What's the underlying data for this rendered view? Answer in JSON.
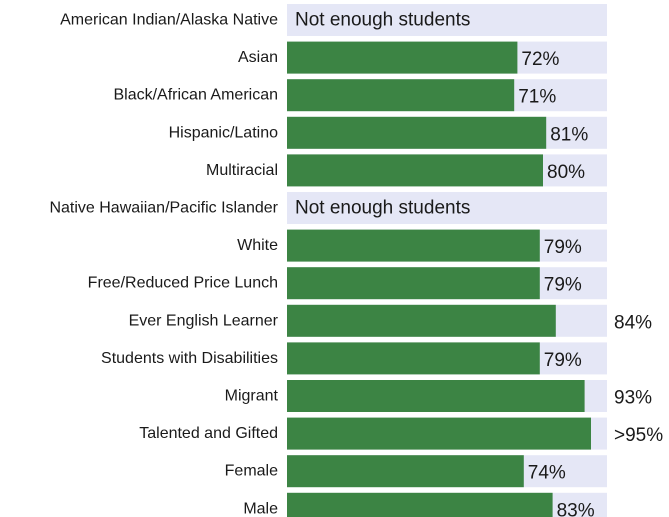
{
  "chart_data": {
    "type": "bar",
    "orientation": "horizontal",
    "xlim": [
      0,
      100
    ],
    "colors": {
      "bar": "#3c8444",
      "track": "#e5e7f6"
    },
    "categories": [
      "American Indian/Alaska Native",
      "Asian",
      "Black/African American",
      "Hispanic/Latino",
      "Multiracial",
      "Native Hawaiian/Pacific Islander",
      "White",
      "Free/Reduced Price Lunch",
      "Ever English Learner",
      "Students with Disabilities",
      "Migrant",
      "Talented and Gifted",
      "Female",
      "Male"
    ],
    "values": [
      null,
      72,
      71,
      81,
      80,
      null,
      79,
      79,
      84,
      79,
      93,
      95,
      74,
      83
    ],
    "labels": [
      "Not enough students",
      "72%",
      "71%",
      "81%",
      "80%",
      "Not enough students",
      "79%",
      "79%",
      "84%",
      "79%",
      "93%",
      ">95%",
      "74%",
      "83%"
    ]
  }
}
